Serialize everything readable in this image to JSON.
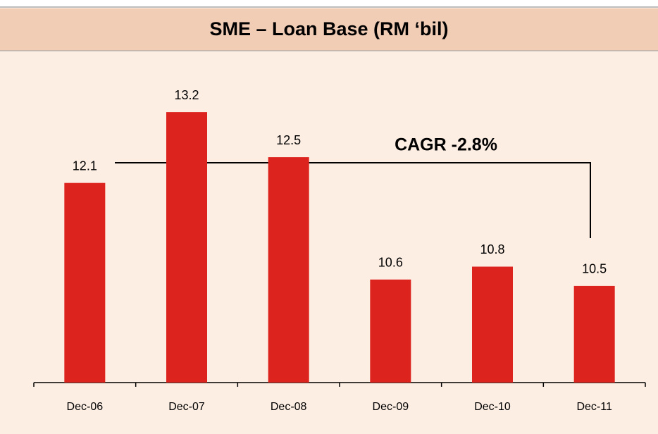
{
  "chart_data": {
    "type": "bar",
    "title": "SME – Loan Base (RM ‘bil)",
    "categories": [
      "Dec-06",
      "Dec-07",
      "Dec-08",
      "Dec-09",
      "Dec-10",
      "Dec-11"
    ],
    "values": [
      12.1,
      13.2,
      12.5,
      10.6,
      10.8,
      10.5
    ],
    "color": "#dc231e",
    "ylim": [
      9,
      14
    ],
    "annotation": "CAGR -2.8%"
  }
}
